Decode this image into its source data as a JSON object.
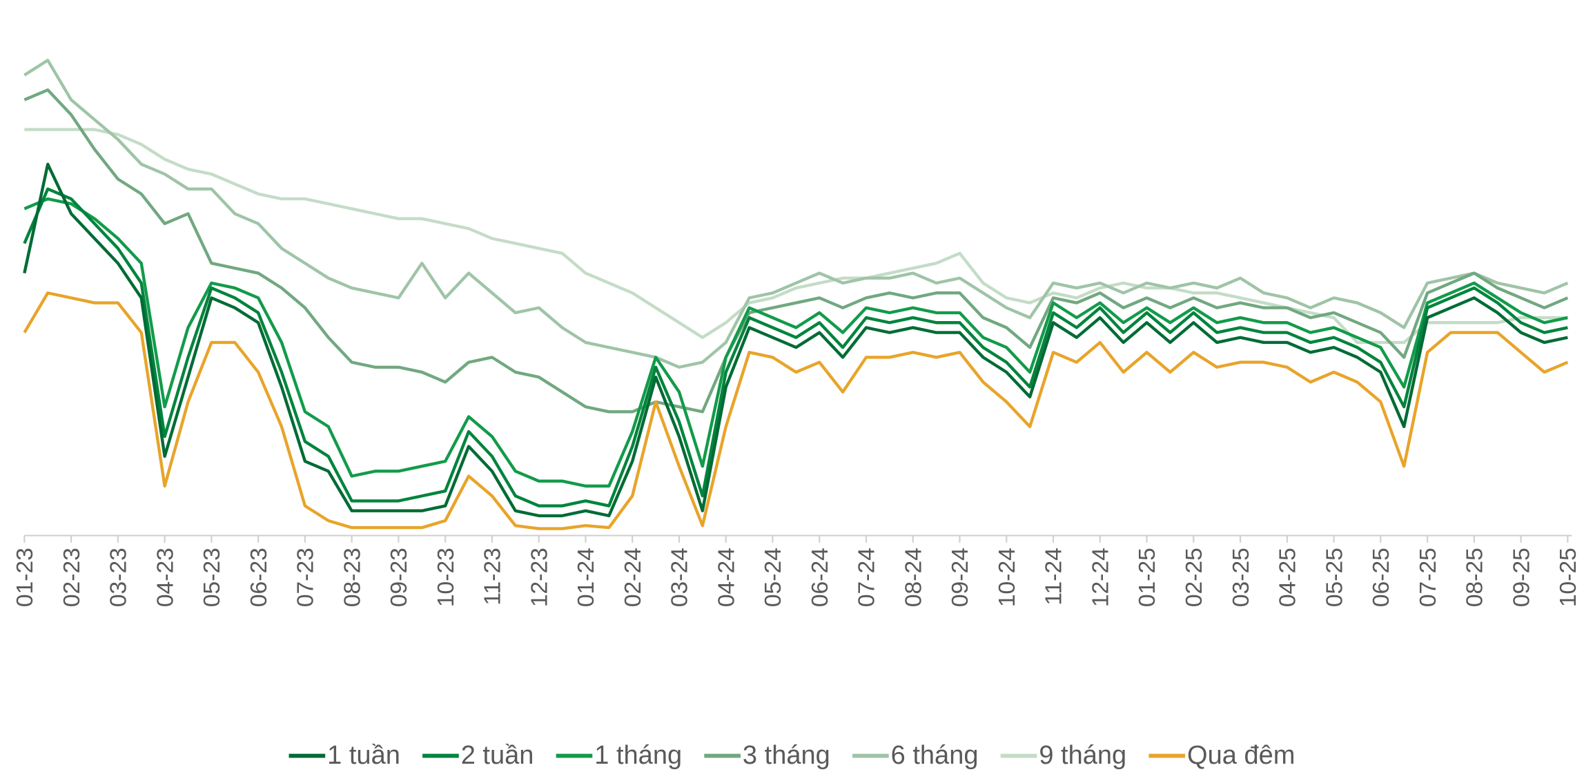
{
  "chart_data": {
    "type": "line",
    "categories": [
      "01-23",
      null,
      "02-23",
      null,
      "03-23",
      null,
      "04-23",
      null,
      "05-23",
      null,
      "06-23",
      null,
      "07-23",
      null,
      "08-23",
      null,
      "09-23",
      null,
      "10-23",
      null,
      "11-23",
      null,
      "12-23",
      null,
      "01-24",
      null,
      "02-24",
      null,
      "03-24",
      null,
      "04-24",
      null,
      "05-24",
      null,
      "06-24",
      null,
      "07-24",
      null,
      "08-24",
      null,
      "09-24",
      null,
      "10-24",
      null,
      "11-24",
      null,
      "12-24",
      null,
      "01-25",
      null,
      "02-25",
      null,
      "03-25",
      null,
      "04-25",
      null,
      "05-25",
      null,
      "06-25",
      null,
      "07-25",
      null,
      "08-25",
      null,
      "09-25",
      null,
      "10-25"
    ],
    "ylim": [
      0,
      10
    ],
    "legend": "bottom",
    "series": [
      {
        "name": "1 tuần",
        "color": "#006b35",
        "values": [
          5.3,
          7.5,
          6.5,
          6.0,
          5.5,
          4.8,
          1.6,
          3.2,
          4.8,
          4.6,
          4.3,
          3.0,
          1.5,
          1.3,
          0.5,
          0.5,
          0.5,
          0.5,
          0.6,
          1.8,
          1.3,
          0.5,
          0.4,
          0.4,
          0.5,
          0.4,
          1.5,
          3.2,
          2.0,
          0.5,
          3.0,
          4.2,
          4.0,
          3.8,
          4.1,
          3.6,
          4.2,
          4.1,
          4.2,
          4.1,
          4.1,
          3.6,
          3.3,
          2.8,
          4.3,
          4.0,
          4.4,
          3.9,
          4.3,
          3.9,
          4.3,
          3.9,
          4.0,
          3.9,
          3.9,
          3.7,
          3.8,
          3.6,
          3.3,
          2.2,
          4.4,
          4.6,
          4.8,
          4.5,
          4.1,
          3.9,
          4.0
        ]
      },
      {
        "name": "2 tuần",
        "color": "#00843d",
        "values": [
          5.9,
          7.0,
          6.8,
          6.3,
          5.8,
          5.1,
          2.0,
          3.6,
          5.0,
          4.8,
          4.5,
          3.3,
          1.9,
          1.6,
          0.7,
          0.7,
          0.7,
          0.8,
          0.9,
          2.1,
          1.6,
          0.8,
          0.6,
          0.6,
          0.7,
          0.6,
          1.8,
          3.4,
          2.3,
          0.8,
          3.3,
          4.4,
          4.2,
          4.0,
          4.3,
          3.8,
          4.4,
          4.3,
          4.4,
          4.3,
          4.3,
          3.8,
          3.5,
          3.0,
          4.5,
          4.2,
          4.6,
          4.1,
          4.5,
          4.1,
          4.5,
          4.1,
          4.2,
          4.1,
          4.1,
          3.9,
          4.0,
          3.8,
          3.5,
          2.6,
          4.6,
          4.8,
          5.0,
          4.7,
          4.3,
          4.1,
          4.2
        ]
      },
      {
        "name": "1 tháng",
        "color": "#129b4a",
        "values": [
          6.6,
          6.8,
          6.7,
          6.4,
          6.0,
          5.5,
          2.6,
          4.2,
          5.1,
          5.0,
          4.8,
          3.9,
          2.5,
          2.2,
          1.2,
          1.3,
          1.3,
          1.4,
          1.5,
          2.4,
          2.0,
          1.3,
          1.1,
          1.1,
          1.0,
          1.0,
          2.1,
          3.6,
          2.9,
          1.4,
          3.6,
          4.6,
          4.4,
          4.2,
          4.5,
          4.1,
          4.6,
          4.5,
          4.6,
          4.5,
          4.5,
          4.0,
          3.8,
          3.3,
          4.7,
          4.4,
          4.7,
          4.3,
          4.6,
          4.3,
          4.6,
          4.3,
          4.4,
          4.3,
          4.3,
          4.1,
          4.2,
          4.0,
          3.8,
          3.0,
          4.7,
          4.9,
          5.1,
          4.8,
          4.5,
          4.3,
          4.4
        ]
      },
      {
        "name": "3 tháng",
        "color": "#71a880",
        "values": [
          8.8,
          9.0,
          8.5,
          7.8,
          7.2,
          6.9,
          6.3,
          6.5,
          5.5,
          5.4,
          5.3,
          5.0,
          4.6,
          4.0,
          3.5,
          3.4,
          3.4,
          3.3,
          3.1,
          3.5,
          3.6,
          3.3,
          3.2,
          2.9,
          2.6,
          2.5,
          2.5,
          2.7,
          2.6,
          2.5,
          3.6,
          4.5,
          4.6,
          4.7,
          4.8,
          4.6,
          4.8,
          4.9,
          4.8,
          4.9,
          4.9,
          4.4,
          4.2,
          3.8,
          4.8,
          4.7,
          4.9,
          4.6,
          4.8,
          4.6,
          4.8,
          4.6,
          4.7,
          4.6,
          4.6,
          4.4,
          4.5,
          4.3,
          4.1,
          3.6,
          4.9,
          5.1,
          5.3,
          5.0,
          4.8,
          4.6,
          4.8
        ]
      },
      {
        "name": "6 tháng",
        "color": "#9fc4a7",
        "values": [
          9.3,
          9.6,
          8.8,
          8.4,
          8.0,
          7.5,
          7.3,
          7.0,
          7.0,
          6.5,
          6.3,
          5.8,
          5.5,
          5.2,
          5.0,
          4.9,
          4.8,
          5.5,
          4.8,
          5.3,
          4.9,
          4.5,
          4.6,
          4.2,
          3.9,
          3.8,
          3.7,
          3.6,
          3.4,
          3.5,
          3.9,
          4.8,
          4.9,
          5.1,
          5.3,
          5.1,
          5.2,
          5.2,
          5.3,
          5.1,
          5.2,
          4.9,
          4.6,
          4.4,
          5.1,
          5.0,
          5.1,
          4.9,
          5.1,
          5.0,
          5.1,
          5.0,
          5.2,
          4.9,
          4.8,
          4.6,
          4.8,
          4.7,
          4.5,
          4.2,
          5.1,
          5.2,
          5.3,
          5.1,
          5.0,
          4.9,
          5.1
        ]
      },
      {
        "name": "9 tháng",
        "color": "#c4dcc7",
        "values": [
          8.2,
          8.2,
          8.2,
          8.2,
          8.1,
          7.9,
          7.6,
          7.4,
          7.3,
          7.1,
          6.9,
          6.8,
          6.8,
          6.7,
          6.6,
          6.5,
          6.4,
          6.4,
          6.3,
          6.2,
          6.0,
          5.9,
          5.8,
          5.7,
          5.3,
          5.1,
          4.9,
          4.6,
          4.3,
          4.0,
          4.3,
          4.7,
          4.8,
          5.0,
          5.1,
          5.2,
          5.2,
          5.3,
          5.4,
          5.5,
          5.7,
          5.1,
          4.8,
          4.7,
          4.9,
          4.8,
          5.0,
          5.1,
          5.0,
          5.0,
          4.9,
          4.9,
          4.8,
          4.7,
          4.6,
          4.5,
          4.4,
          3.9,
          3.9,
          3.9,
          4.3,
          4.3,
          4.3,
          4.3,
          4.4,
          4.4,
          4.4
        ]
      },
      {
        "name": "Qua đêm",
        "color": "#e8a42a",
        "values": [
          4.1,
          4.9,
          4.8,
          4.7,
          4.7,
          4.1,
          1.0,
          2.7,
          3.9,
          3.9,
          3.3,
          2.2,
          0.6,
          0.3,
          0.16,
          0.16,
          0.16,
          0.16,
          0.3,
          1.2,
          0.8,
          0.2,
          0.14,
          0.14,
          0.2,
          0.16,
          0.8,
          2.7,
          1.4,
          0.2,
          2.2,
          3.7,
          3.6,
          3.3,
          3.5,
          2.9,
          3.6,
          3.6,
          3.7,
          3.6,
          3.7,
          3.1,
          2.7,
          2.2,
          3.7,
          3.5,
          3.9,
          3.3,
          3.7,
          3.3,
          3.7,
          3.4,
          3.5,
          3.5,
          3.4,
          3.1,
          3.3,
          3.1,
          2.7,
          1.4,
          3.7,
          4.1,
          4.1,
          4.1,
          3.7,
          3.3,
          3.5
        ]
      }
    ]
  }
}
